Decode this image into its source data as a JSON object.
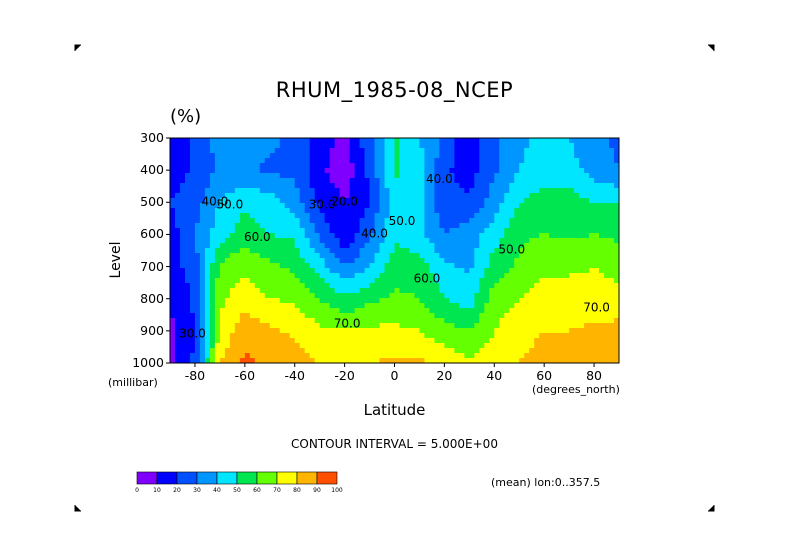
{
  "chart_data": {
    "type": "heatmap",
    "title": "RHUM_1985-08_NCEP",
    "units": "(%)",
    "xlabel": "Latitude",
    "x_unit": "(degrees_north)",
    "ylabel": "Level",
    "y_unit": "(millibar)",
    "x_ticks": [
      "-80",
      "-60",
      "-40",
      "-20",
      "0",
      "20",
      "40",
      "60",
      "80"
    ],
    "y_ticks": [
      "300",
      "400",
      "500",
      "600",
      "700",
      "800",
      "900",
      "1000"
    ],
    "xlim": [
      -90,
      90
    ],
    "ylim": [
      1000,
      300
    ],
    "y_inverted": true,
    "contour_interval_text": "CONTOUR INTERVAL = 5.000E+00",
    "averaging_text": "(mean) lon:0..357.5",
    "contour_labels": [
      {
        "text": "30.0",
        "lat": -81,
        "lev": 920
      },
      {
        "text": "40.0",
        "lat": -72,
        "lev": 510
      },
      {
        "text": "50.0",
        "lat": -66,
        "lev": 520
      },
      {
        "text": "60.0",
        "lat": -55,
        "lev": 620
      },
      {
        "text": "30.0",
        "lat": -29,
        "lev": 520
      },
      {
        "text": "20.0",
        "lat": -20,
        "lev": 510
      },
      {
        "text": "40.0",
        "lat": -8,
        "lev": 610
      },
      {
        "text": "50.0",
        "lat": 3,
        "lev": 570
      },
      {
        "text": "60.0",
        "lat": 13,
        "lev": 750
      },
      {
        "text": "70.0",
        "lat": -19,
        "lev": 890
      },
      {
        "text": "40.0",
        "lat": 18,
        "lev": 440
      },
      {
        "text": "50.0",
        "lat": 47,
        "lev": 660
      },
      {
        "text": "70.0",
        "lat": 81,
        "lev": 840
      }
    ],
    "colorbar": {
      "labels": [
        "0",
        "10",
        "20",
        "30",
        "40",
        "50",
        "60",
        "70",
        "80",
        "90",
        "100"
      ],
      "colors": [
        "#8000ff",
        "#0000ff",
        "#0050ff",
        "#0096ff",
        "#00e6ff",
        "#00e650",
        "#64ff00",
        "#ffff00",
        "#ffb400",
        "#ff5000",
        "#ff0000"
      ]
    },
    "lat_grid": [
      -90,
      -80,
      -70,
      -60,
      -50,
      -40,
      -30,
      -20,
      -10,
      0,
      10,
      20,
      30,
      40,
      50,
      60,
      70,
      80,
      90
    ],
    "lev_grid": [
      300,
      400,
      500,
      600,
      700,
      800,
      900,
      1000
    ],
    "values": [
      [
        15,
        22,
        35,
        35,
        32,
        28,
        16,
        6,
        28,
        52,
        40,
        28,
        12,
        28,
        38,
        42,
        40,
        32,
        28
      ],
      [
        15,
        22,
        32,
        32,
        28,
        28,
        12,
        4,
        22,
        52,
        45,
        22,
        15,
        28,
        40,
        45,
        45,
        35,
        30
      ],
      [
        20,
        25,
        40,
        48,
        45,
        35,
        18,
        10,
        20,
        45,
        42,
        22,
        22,
        35,
        50,
        55,
        55,
        50,
        50
      ],
      [
        15,
        30,
        46,
        55,
        50,
        48,
        28,
        12,
        28,
        48,
        42,
        30,
        35,
        45,
        58,
        60,
        58,
        60,
        58
      ],
      [
        15,
        25,
        62,
        68,
        62,
        58,
        45,
        30,
        40,
        55,
        55,
        42,
        38,
        55,
        62,
        68,
        68,
        70,
        65
      ],
      [
        10,
        22,
        68,
        76,
        70,
        68,
        60,
        52,
        58,
        62,
        60,
        50,
        45,
        65,
        70,
        74,
        75,
        74,
        76
      ],
      [
        8,
        20,
        72,
        86,
        82,
        78,
        72,
        70,
        72,
        72,
        70,
        64,
        60,
        70,
        76,
        80,
        80,
        82,
        82
      ],
      [
        8,
        22,
        80,
        92,
        88,
        84,
        80,
        78,
        80,
        82,
        82,
        76,
        72,
        76,
        80,
        84,
        86,
        88,
        90
      ]
    ]
  }
}
